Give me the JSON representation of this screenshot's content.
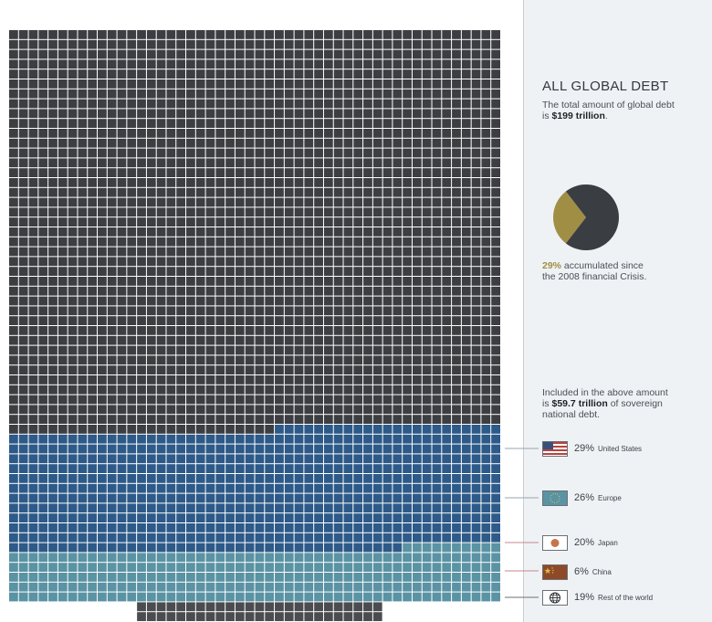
{
  "sidebar": {
    "title": "ALL GLOBAL DEBT",
    "intro_line1": "The total amount of global debt",
    "intro_prefix": "is ",
    "intro_amount": "$199 trillion",
    "intro_suffix": ".",
    "pie_pct": "29%",
    "pie_text1": " accumulated since",
    "pie_text2": "the 2008 financial Crisis.",
    "sov_line1": "Included in the above amount",
    "sov_prefix": "is ",
    "sov_amount": "$59.7 trillion",
    "sov_suffix": " of sovereign",
    "sov_line3": "national debt."
  },
  "colors": {
    "other": "#3c3e42",
    "united_states": "#2d5a88",
    "europe": "#5a93a3",
    "japan": "#c6754a",
    "china": "#8e4a28",
    "rest_of_world": "#4a4c50",
    "pie_gold": "#a08e45"
  },
  "chart_data": [
    {
      "type": "pie",
      "title": "",
      "slices": [
        {
          "label": "accumulated since the 2008 financial Crisis",
          "value": 29,
          "color": "#a08e45"
        },
        {
          "label": "",
          "value": 71,
          "color": "#3a3d42"
        }
      ]
    },
    {
      "type": "waffle",
      "title": "",
      "unit": "$ trillion",
      "total": 199,
      "series": [
        {
          "name": "United States",
          "label": "29%",
          "value": 29,
          "color": "#2d5a88"
        },
        {
          "name": "Europe",
          "label": "26%",
          "value": 26,
          "color": "#5a93a3"
        },
        {
          "name": "Japan",
          "label": "20%",
          "value": 20,
          "color": "#c6754a"
        },
        {
          "name": "China",
          "label": "6%",
          "value": 6,
          "color": "#8e4a28"
        },
        {
          "name": "Rest of the world",
          "label": "19%",
          "value": 19,
          "color": "#4a4c50"
        }
      ]
    }
  ],
  "legend": [
    {
      "pct": "29%",
      "name": "United States",
      "icon": "us-flag-icon"
    },
    {
      "pct": "26%",
      "name": "Europe",
      "icon": "eu-flag-icon"
    },
    {
      "pct": "20%",
      "name": "Japan",
      "icon": "japan-flag-icon"
    },
    {
      "pct": "6%",
      "name": "China",
      "icon": "china-flag-icon"
    },
    {
      "pct": "19%",
      "name": "Rest of the world",
      "icon": "globe-icon"
    }
  ]
}
